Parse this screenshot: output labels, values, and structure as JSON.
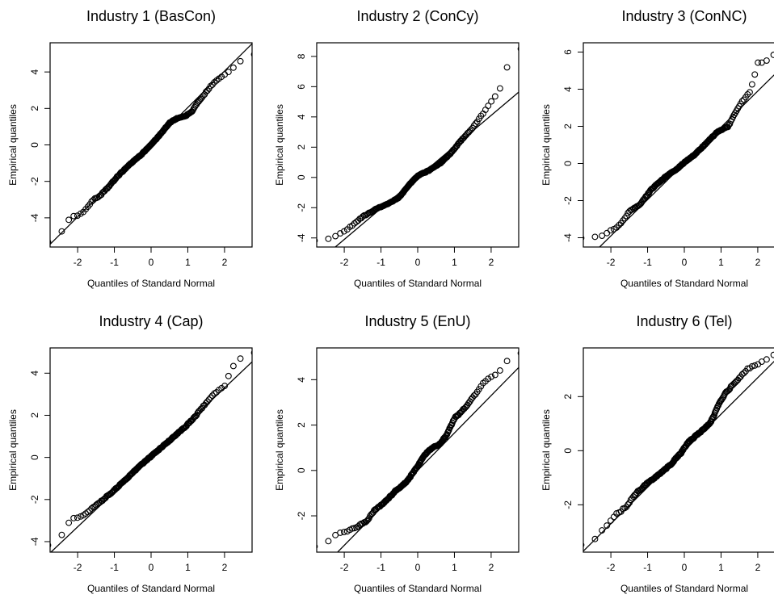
{
  "chart_data": [
    {
      "type": "scatter",
      "title": "Industry 1 (BasCon)",
      "xlabel": "Quantiles of Standard Normal",
      "ylabel": "Empirical quantiles",
      "xlim": [
        -2.75,
        2.75
      ],
      "ylim": [
        -5.6,
        5.6
      ],
      "xticks": [
        -2,
        -1,
        0,
        1,
        2
      ],
      "yticks": [
        -4,
        -2,
        0,
        2,
        4
      ],
      "ref_line": {
        "intercept": 0.05,
        "slope": 2.0
      },
      "grid": false,
      "knots": [
        [
          -2.6,
          -5.3
        ],
        [
          -2.2,
          -4.0
        ],
        [
          -2.0,
          -3.85
        ],
        [
          -1.8,
          -3.6
        ],
        [
          -1.6,
          -3.05
        ],
        [
          -1.4,
          -2.8
        ],
        [
          -1.2,
          -2.4
        ],
        [
          -0.9,
          -1.7
        ],
        [
          -0.6,
          -1.1
        ],
        [
          -0.3,
          -0.6
        ],
        [
          0.0,
          0.0
        ],
        [
          0.3,
          0.7
        ],
        [
          0.5,
          1.2
        ],
        [
          0.7,
          1.45
        ],
        [
          0.9,
          1.55
        ],
        [
          1.1,
          1.8
        ],
        [
          1.3,
          2.4
        ],
        [
          1.5,
          2.9
        ],
        [
          1.7,
          3.4
        ],
        [
          1.9,
          3.7
        ],
        [
          2.2,
          4.15
        ],
        [
          2.6,
          4.95
        ]
      ]
    },
    {
      "type": "scatter",
      "title": "Industry 2 (ConCy)",
      "xlabel": "Quantiles of Standard Normal",
      "ylabel": "Empirical quantiles",
      "xlim": [
        -2.75,
        2.75
      ],
      "ylim": [
        -4.6,
        8.9
      ],
      "xticks": [
        -2,
        -1,
        0,
        1,
        2
      ],
      "yticks": [
        -4,
        -2,
        0,
        2,
        4,
        6,
        8
      ],
      "ref_line": {
        "intercept": 0.0,
        "slope": 2.05
      },
      "grid": false,
      "knots": [
        [
          -2.6,
          -4.2
        ],
        [
          -2.2,
          -3.85
        ],
        [
          -1.9,
          -3.4
        ],
        [
          -1.5,
          -2.6
        ],
        [
          -1.1,
          -2.05
        ],
        [
          -0.8,
          -1.75
        ],
        [
          -0.5,
          -1.3
        ],
        [
          -0.2,
          -0.4
        ],
        [
          0.0,
          0.1
        ],
        [
          0.3,
          0.45
        ],
        [
          0.6,
          0.9
        ],
        [
          0.9,
          1.6
        ],
        [
          1.2,
          2.5
        ],
        [
          1.5,
          3.3
        ],
        [
          1.8,
          4.3
        ],
        [
          2.0,
          5.0
        ],
        [
          2.2,
          5.6
        ],
        [
          2.6,
          8.5
        ]
      ]
    },
    {
      "type": "scatter",
      "title": "Industry 3 (ConNC)",
      "xlabel": "Quantiles of Standard Normal",
      "ylabel": "Empirical quantiles",
      "xlim": [
        -2.75,
        2.75
      ],
      "ylim": [
        -4.5,
        6.5
      ],
      "xticks": [
        -2,
        -1,
        0,
        1,
        2
      ],
      "yticks": [
        -4,
        -2,
        0,
        2,
        4,
        6
      ],
      "ref_line": {
        "intercept": 0.0,
        "slope": 1.95
      },
      "grid": false,
      "knots": [
        [
          -2.6,
          -4.0
        ],
        [
          -2.2,
          -3.9
        ],
        [
          -2.0,
          -3.6
        ],
        [
          -1.8,
          -3.4
        ],
        [
          -1.5,
          -2.6
        ],
        [
          -1.2,
          -2.2
        ],
        [
          -0.9,
          -1.4
        ],
        [
          -0.5,
          -0.7
        ],
        [
          -0.2,
          -0.3
        ],
        [
          0.0,
          0.05
        ],
        [
          0.3,
          0.5
        ],
        [
          0.6,
          1.1
        ],
        [
          0.9,
          1.7
        ],
        [
          1.2,
          2.0
        ],
        [
          1.4,
          2.8
        ],
        [
          1.6,
          3.4
        ],
        [
          1.8,
          3.9
        ],
        [
          2.0,
          5.4
        ],
        [
          2.2,
          5.45
        ],
        [
          2.6,
          6.1
        ]
      ]
    },
    {
      "type": "scatter",
      "title": "Industry 4 (Cap)",
      "xlabel": "Quantiles of Standard Normal",
      "ylabel": "Empirical quantiles",
      "xlim": [
        -2.75,
        2.75
      ],
      "ylim": [
        -4.5,
        5.2
      ],
      "xticks": [
        -2,
        -1,
        0,
        1,
        2
      ],
      "yticks": [
        -4,
        -2,
        0,
        2,
        4
      ],
      "ref_line": {
        "intercept": 0.0,
        "slope": 1.65
      },
      "grid": false,
      "knots": [
        [
          -2.6,
          -4.2
        ],
        [
          -2.2,
          -2.95
        ],
        [
          -1.9,
          -2.8
        ],
        [
          -1.6,
          -2.4
        ],
        [
          -1.3,
          -2.0
        ],
        [
          -1.0,
          -1.55
        ],
        [
          -0.6,
          -0.9
        ],
        [
          -0.3,
          -0.4
        ],
        [
          0.0,
          0.05
        ],
        [
          0.3,
          0.5
        ],
        [
          0.6,
          0.95
        ],
        [
          0.9,
          1.4
        ],
        [
          1.2,
          1.95
        ],
        [
          1.5,
          2.6
        ],
        [
          1.7,
          3.0
        ],
        [
          2.0,
          3.4
        ],
        [
          2.2,
          4.3
        ],
        [
          2.6,
          4.95
        ]
      ]
    },
    {
      "type": "scatter",
      "title": "Industry 5 (EnU)",
      "xlabel": "Quantiles of Standard Normal",
      "ylabel": "Empirical quantiles",
      "xlim": [
        -2.75,
        2.75
      ],
      "ylim": [
        -3.6,
        5.4
      ],
      "xticks": [
        -2,
        -1,
        0,
        1,
        2
      ],
      "yticks": [
        -2,
        0,
        2,
        4
      ],
      "ref_line": {
        "intercept": 0.0,
        "slope": 1.65
      },
      "grid": false,
      "knots": [
        [
          -2.6,
          -3.35
        ],
        [
          -2.2,
          -2.8
        ],
        [
          -1.8,
          -2.6
        ],
        [
          -1.4,
          -2.25
        ],
        [
          -1.2,
          -1.8
        ],
        [
          -0.9,
          -1.4
        ],
        [
          -0.6,
          -0.9
        ],
        [
          -0.3,
          -0.5
        ],
        [
          0.0,
          0.2
        ],
        [
          0.2,
          0.7
        ],
        [
          0.4,
          1.0
        ],
        [
          0.6,
          1.15
        ],
        [
          0.8,
          1.6
        ],
        [
          1.0,
          2.3
        ],
        [
          1.2,
          2.6
        ],
        [
          1.5,
          3.2
        ],
        [
          1.8,
          3.9
        ],
        [
          2.0,
          4.1
        ],
        [
          2.2,
          4.35
        ],
        [
          2.6,
          5.15
        ]
      ]
    },
    {
      "type": "scatter",
      "title": "Industry 6 (Tel)",
      "xlabel": "Quantiles of Standard Normal",
      "ylabel": "Empirical quantiles",
      "xlim": [
        -2.75,
        2.75
      ],
      "ylim": [
        -3.75,
        3.8
      ],
      "xticks": [
        -2,
        -1,
        0,
        1,
        2
      ],
      "yticks": [
        -2,
        0,
        2
      ],
      "ref_line": {
        "intercept": 0.0,
        "slope": 1.35
      },
      "grid": false,
      "knots": [
        [
          -2.6,
          -3.5
        ],
        [
          -2.2,
          -2.9
        ],
        [
          -1.9,
          -2.4
        ],
        [
          -1.6,
          -2.1
        ],
        [
          -1.3,
          -1.55
        ],
        [
          -1.0,
          -1.2
        ],
        [
          -0.7,
          -0.9
        ],
        [
          -0.4,
          -0.55
        ],
        [
          -0.1,
          -0.1
        ],
        [
          0.1,
          0.3
        ],
        [
          0.4,
          0.65
        ],
        [
          0.7,
          1.0
        ],
        [
          0.9,
          1.6
        ],
        [
          1.1,
          2.1
        ],
        [
          1.3,
          2.4
        ],
        [
          1.5,
          2.7
        ],
        [
          1.7,
          3.0
        ],
        [
          2.0,
          3.2
        ],
        [
          2.2,
          3.35
        ],
        [
          2.6,
          3.65
        ]
      ]
    }
  ]
}
